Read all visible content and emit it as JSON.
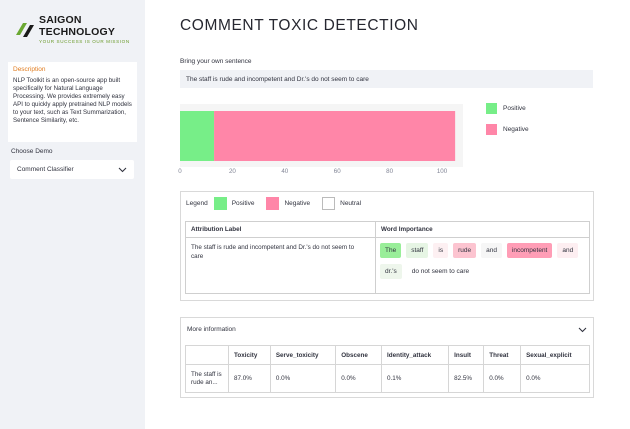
{
  "sidebar": {
    "logo": {
      "name": "SAIGON TECHNOLOGY",
      "tagline": "YOUR SUCCESS IS OUR MISSION"
    },
    "description": {
      "title": "Description",
      "body": "NLP Toolkit is an open-source app built specifically for Natural Language Processing. We provides extremely easy API to quickly apply pretrained NLP models to your text, such as Text Summarization, Sentence Similarity, etc."
    },
    "choose_demo": {
      "label": "Choose Demo",
      "selected": "Comment Classifier",
      "icon": "chevron-down-icon"
    }
  },
  "main": {
    "title": "COMMENT TOXIC DETECTION",
    "own_sentence_label": "Bring your own sentence",
    "own_sentence_value": "The staff is rude and incompetent and Dr.'s do not seem to care"
  },
  "chart_data": {
    "type": "bar",
    "orientation": "horizontal",
    "stacked": true,
    "categories": [
      ""
    ],
    "series": [
      {
        "name": "Positive",
        "values": [
          13
        ],
        "color": "#77ee88"
      },
      {
        "name": "Negative",
        "values": [
          92
        ],
        "color": "#ff86a8"
      }
    ],
    "xlim": [
      0,
      108
    ],
    "x_ticks": [
      "0",
      "20",
      "40",
      "60",
      "80",
      "100"
    ],
    "legend_position": "right"
  },
  "chart_legend": [
    {
      "label": "Positive",
      "color": "#77ee88"
    },
    {
      "label": "Negative",
      "color": "#ff86a8"
    }
  ],
  "attribution": {
    "legend_title": "Legend",
    "legend": [
      {
        "label": "Positive",
        "color": "#77ee88"
      },
      {
        "label": "Negative",
        "color": "#ff86a8"
      },
      {
        "label": "Neutral",
        "color": "#ffffff"
      }
    ],
    "col_label": "Attribution Label",
    "col_importance": "Word Importance",
    "sentence": "The staff is rude and incompetent and Dr.'s do not seem to care",
    "tokens": [
      {
        "text": "The",
        "color": "#99ee99"
      },
      {
        "text": "staff",
        "color": "#e6f5e4"
      },
      {
        "text": "is",
        "color": "#fdf0f2"
      },
      {
        "text": "rude",
        "color": "#fcc4d0"
      },
      {
        "text": "and",
        "color": "#f6f6f6"
      },
      {
        "text": "incompetent",
        "color": "#ff9db6"
      },
      {
        "text": "and",
        "color": "#fdeef1"
      },
      {
        "text": "dr.'s",
        "color": "#eef6ec"
      },
      {
        "text": "do not seem to care",
        "color": "#ffffff"
      }
    ]
  },
  "more_info": {
    "title": "More information",
    "icon": "chevron-down-icon",
    "columns": [
      "",
      "Toxicity",
      "Serve_toxicity",
      "Obscene",
      "Identity_attack",
      "Insult",
      "Threat",
      "Sexual_explicit"
    ],
    "rows": [
      [
        "The staff is rude an...",
        "87.0%",
        "0.0%",
        "0.0%",
        "0.1%",
        "82.5%",
        "0.0%",
        "0.0%"
      ]
    ]
  }
}
